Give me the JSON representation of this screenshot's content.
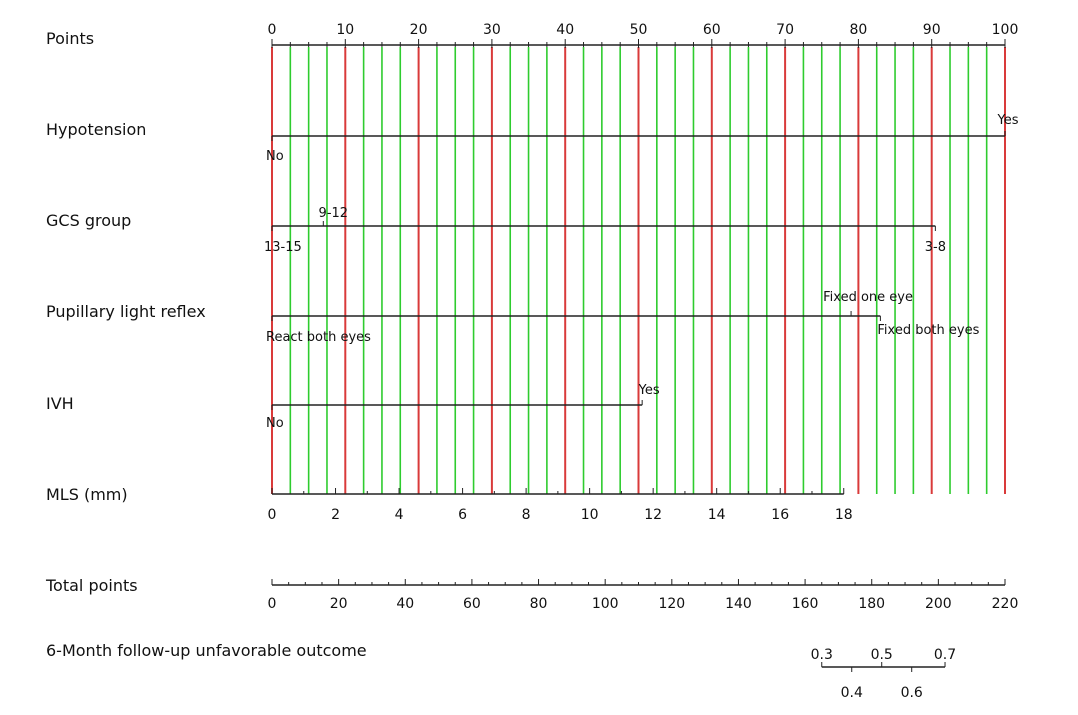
{
  "chart_data": {
    "type": "nomogram",
    "title": "",
    "colors": {
      "major_gridline": "#d93a3a",
      "minor_gridline": "#2ecc2e",
      "axis": "#222222",
      "text": "#111111"
    },
    "points_axis": {
      "label": "Points",
      "range": [
        0,
        100
      ],
      "major_ticks": [
        0,
        10,
        20,
        30,
        40,
        50,
        60,
        70,
        80,
        90,
        100
      ],
      "minor_step": 2.5
    },
    "variables": [
      {
        "label": "Hypotension",
        "levels": [
          {
            "name": "No",
            "points": 0
          },
          {
            "name": "Yes",
            "points": 100
          }
        ]
      },
      {
        "label": "GCS group",
        "levels": [
          {
            "name": "13-15",
            "points": 0
          },
          {
            "name": "9-12",
            "points": 7
          },
          {
            "name": "3-8",
            "points": 90.5
          }
        ]
      },
      {
        "label": "Pupillary light reflex",
        "levels": [
          {
            "name": "React both eyes",
            "points": 0
          },
          {
            "name": "Fixed one eye",
            "points": 79
          },
          {
            "name": "Fixed both eyes",
            "points": 83
          }
        ]
      },
      {
        "label": "IVH",
        "levels": [
          {
            "name": "No",
            "points": 0
          },
          {
            "name": "Yes",
            "points": 50.5
          }
        ]
      },
      {
        "label": "MLS (mm)",
        "range": [
          0,
          18
        ],
        "ticks": [
          0,
          2,
          4,
          6,
          8,
          10,
          12,
          14,
          16,
          18
        ],
        "points_at_max": 78
      }
    ],
    "total_points_axis": {
      "label": "Total points",
      "range": [
        0,
        220
      ],
      "ticks": [
        0,
        20,
        40,
        60,
        80,
        100,
        120,
        140,
        160,
        180,
        200,
        220
      ]
    },
    "outcome_axis": {
      "label": "6-Month follow-up unfavorable outcome",
      "probabilities": [
        {
          "label": "0.3",
          "total_points": 165
        },
        {
          "label": "0.4",
          "total_points": 174
        },
        {
          "label": "0.5",
          "total_points": 183
        },
        {
          "label": "0.6",
          "total_points": 192
        },
        {
          "label": "0.7",
          "total_points": 202
        }
      ]
    }
  }
}
